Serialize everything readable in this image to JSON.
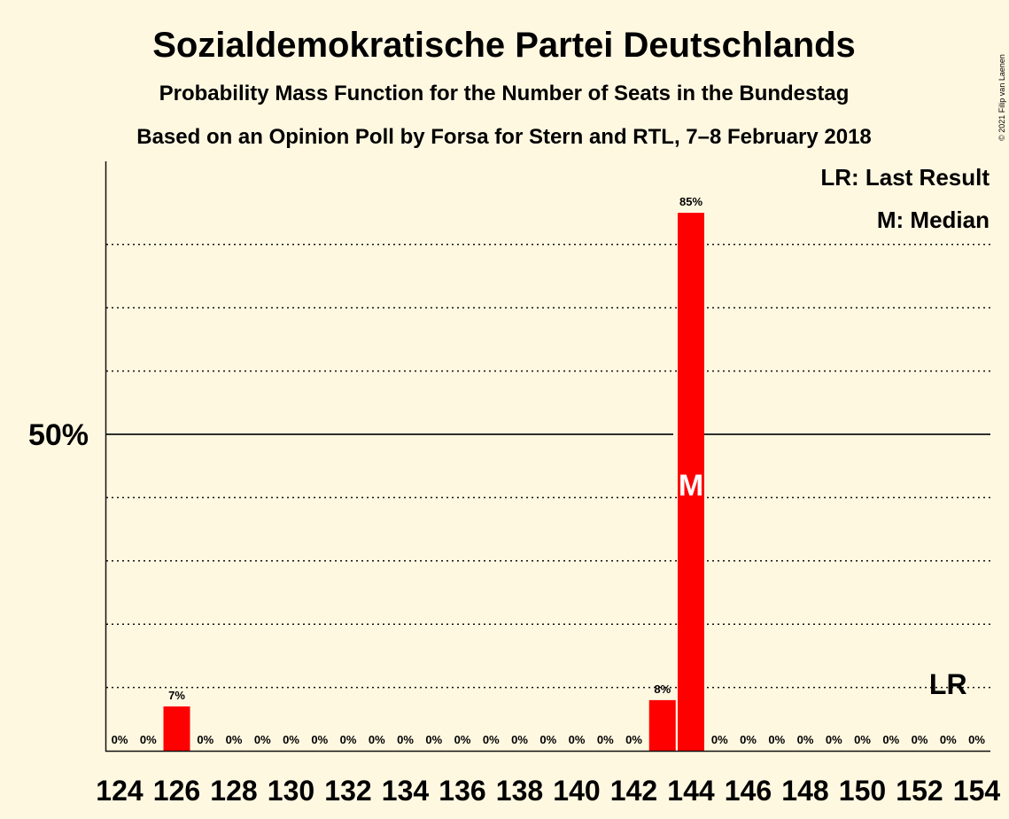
{
  "title": "Sozialdemokratische Partei Deutschlands",
  "subtitle1": "Probability Mass Function for the Number of Seats in the Bundestag",
  "subtitle2": "Based on an Opinion Poll by Forsa for Stern and RTL, 7–8 February 2018",
  "credit": "© 2021 Filip van Laenen",
  "legend": {
    "last_result": "LR: Last Result",
    "median": "M: Median"
  },
  "colors": {
    "background": "#fff8e1",
    "bar": "#ff0000",
    "text": "#111111"
  },
  "chart_data": {
    "type": "bar",
    "x": [
      124,
      125,
      126,
      127,
      128,
      129,
      130,
      131,
      132,
      133,
      134,
      135,
      136,
      137,
      138,
      139,
      140,
      141,
      142,
      143,
      144,
      145,
      146,
      147,
      148,
      149,
      150,
      151,
      152,
      153,
      154
    ],
    "values": [
      0,
      0,
      7,
      0,
      0,
      0,
      0,
      0,
      0,
      0,
      0,
      0,
      0,
      0,
      0,
      0,
      0,
      0,
      0,
      8,
      85,
      0,
      0,
      0,
      0,
      0,
      0,
      0,
      0,
      0,
      0
    ],
    "value_labels": [
      "0%",
      "0%",
      "7%",
      "0%",
      "0%",
      "0%",
      "0%",
      "0%",
      "0%",
      "0%",
      "0%",
      "0%",
      "0%",
      "0%",
      "0%",
      "0%",
      "0%",
      "0%",
      "0%",
      "8%",
      "85%",
      "0%",
      "0%",
      "0%",
      "0%",
      "0%",
      "0%",
      "0%",
      "0%",
      "0%",
      "0%"
    ],
    "xtick_labels": [
      "124",
      "126",
      "128",
      "130",
      "132",
      "134",
      "136",
      "138",
      "140",
      "142",
      "144",
      "146",
      "148",
      "150",
      "152",
      "154"
    ],
    "ytick_labels": [
      {
        "value": 50,
        "label": "50%"
      }
    ],
    "ylim": [
      0,
      93
    ],
    "gridlines": [
      10,
      20,
      30,
      40,
      60,
      70,
      80
    ],
    "majorline": 50,
    "median_seat": 144,
    "median_marker": "M",
    "last_result_seat": 153,
    "last_result_marker": "LR",
    "legend_position": "top-right"
  }
}
